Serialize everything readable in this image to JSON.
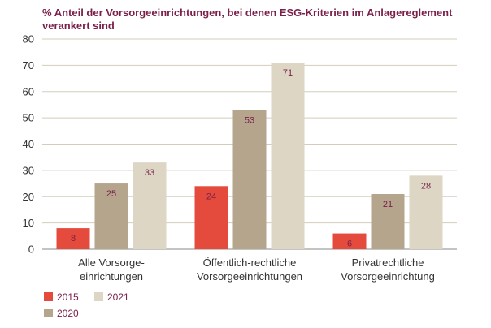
{
  "chart_data": {
    "type": "bar",
    "title": "% Anteil der Vorsorgeeinrichtungen, bei denen ESG-Kriterien im Anlagereglement verankert sind",
    "categories": [
      [
        "Alle Vorsorge-",
        "einrichtungen"
      ],
      [
        "Öffentlich-rechtliche",
        "Vorsorgeeinrichtungen"
      ],
      [
        "Privatrechtliche",
        "Vorsorgeeinrichtung"
      ]
    ],
    "series": [
      {
        "name": "2015",
        "values": [
          8,
          24,
          6
        ],
        "color": "#e54b3c",
        "label_color": "#ffffff"
      },
      {
        "name": "2020",
        "values": [
          25,
          53,
          21
        ],
        "color": "#b5a58c",
        "label_color": "#ffffff"
      },
      {
        "name": "2021",
        "values": [
          33,
          71,
          28
        ],
        "color": "#ddd6c4",
        "label_color": "#7a1f4a"
      }
    ],
    "ylim": [
      0,
      80
    ],
    "yticks": [
      0,
      10,
      20,
      30,
      40,
      50,
      60,
      70,
      80
    ],
    "grid": true,
    "legend_position": "bottom-left"
  }
}
